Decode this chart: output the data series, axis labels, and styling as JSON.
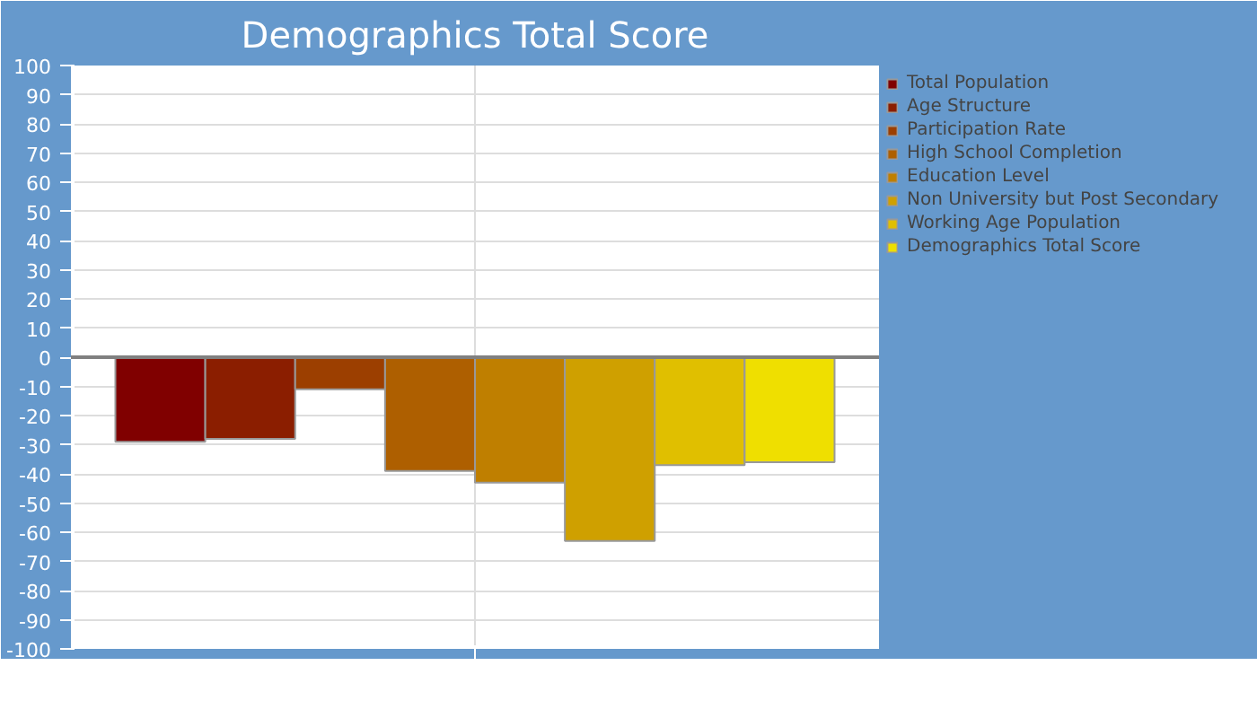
{
  "chart_data": {
    "type": "bar",
    "title": "Demographics Total Score",
    "categories": [
      null
    ],
    "series": [
      {
        "name": "Total Population",
        "color": "#800000",
        "values": [
          -29
        ]
      },
      {
        "name": "Age Structure",
        "color": "#8b1e00",
        "values": [
          -28
        ]
      },
      {
        "name": "Participation Rate",
        "color": "#9c3f00",
        "values": [
          -11
        ]
      },
      {
        "name": "High School Completion",
        "color": "#ae5f00",
        "values": [
          -39
        ]
      },
      {
        "name": "Education Level",
        "color": "#bf7f00",
        "values": [
          -43
        ]
      },
      {
        "name": "Non University but Post Secondary",
        "color": "#cfa000",
        "values": [
          -63
        ]
      },
      {
        "name": "Working Age Population",
        "color": "#e0bf00",
        "values": [
          -37
        ]
      },
      {
        "name": "Demographics Total Score",
        "color": "#efdf00",
        "values": [
          -36
        ]
      }
    ],
    "ylim": [
      -100,
      100
    ],
    "yticks": [
      -100,
      -90,
      -80,
      -70,
      -60,
      -50,
      -40,
      -30,
      -20,
      -10,
      0,
      10,
      20,
      30,
      40,
      50,
      60,
      70,
      80,
      90,
      100
    ],
    "ref_lines": [
      {
        "axis": "y",
        "value": 0,
        "label": null,
        "color": "#808080"
      }
    ],
    "grid": true,
    "legend": "right"
  }
}
